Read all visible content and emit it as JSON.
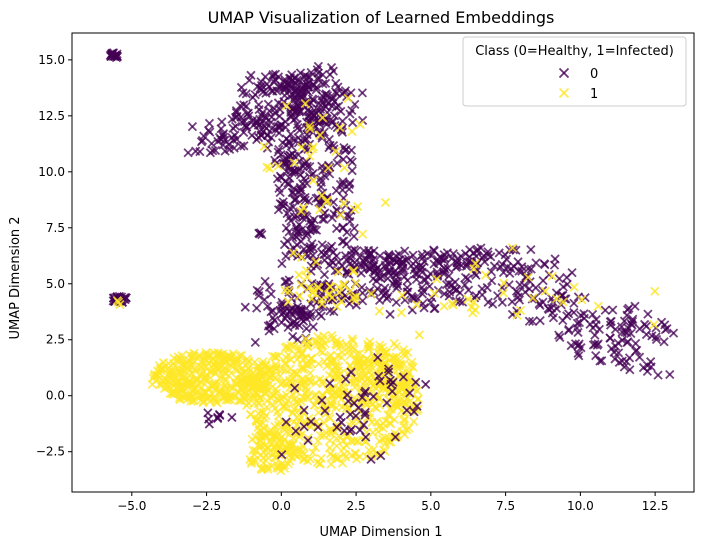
{
  "chart_data": {
    "type": "scatter",
    "title": "UMAP Visualization of Learned Embeddings",
    "xlabel": "UMAP Dimension 1",
    "ylabel": "UMAP Dimension 2",
    "xlim": [
      -7.0,
      13.8
    ],
    "ylim": [
      -4.3,
      16.2
    ],
    "x_ticks": [
      -5.0,
      -2.5,
      0.0,
      2.5,
      5.0,
      7.5,
      10.0,
      12.5
    ],
    "x_tick_labels": [
      "−5.0",
      "−2.5",
      "0.0",
      "2.5",
      "5.0",
      "7.5",
      "10.0",
      "12.5"
    ],
    "y_ticks": [
      -2.5,
      0.0,
      2.5,
      5.0,
      7.5,
      10.0,
      12.5,
      15.0
    ],
    "y_tick_labels": [
      "−2.5",
      "0.0",
      "2.5",
      "5.0",
      "7.5",
      "10.0",
      "12.5",
      "15.0"
    ],
    "grid": false,
    "marker": "x",
    "legend": {
      "title": "Class (0=Healthy, 1=Infected)",
      "position": "top-right",
      "entries": [
        "0",
        "1"
      ]
    },
    "series": [
      {
        "name": "0",
        "color": "#440154",
        "regions": [
          {
            "shape": "cluster",
            "center": [
              -5.6,
              15.2
            ],
            "radii": [
              0.15,
              0.12
            ],
            "n": 20
          },
          {
            "shape": "cluster",
            "center": [
              -5.4,
              4.3
            ],
            "radii": [
              0.25,
              0.15
            ],
            "n": 25
          },
          {
            "shape": "cluster",
            "center": [
              -0.7,
              7.2
            ],
            "radii": [
              0.08,
              0.08
            ],
            "n": 4
          },
          {
            "shape": "band",
            "points": [
              [
                -2.4,
                11.5
              ],
              [
                -1.0,
                12.0
              ],
              [
                0.0,
                12.5
              ],
              [
                1.0,
                13.0
              ],
              [
                2.0,
                12.8
              ]
            ],
            "width": 0.9,
            "n": 170
          },
          {
            "shape": "band",
            "points": [
              [
                -1.0,
                13.9
              ],
              [
                0.0,
                13.8
              ],
              [
                0.8,
                13.7
              ],
              [
                1.5,
                14.2
              ]
            ],
            "width": 0.55,
            "n": 90
          },
          {
            "shape": "band",
            "points": [
              [
                1.2,
                13.0
              ],
              [
                1.3,
                11.0
              ],
              [
                1.2,
                9.5
              ],
              [
                1.0,
                8.0
              ],
              [
                1.4,
                6.8
              ]
            ],
            "width": 1.2,
            "n": 190
          },
          {
            "shape": "band",
            "points": [
              [
                0.2,
                11.0
              ],
              [
                0.4,
                9.5
              ],
              [
                0.5,
                8.5
              ],
              [
                0.7,
                7.2
              ],
              [
                1.0,
                6.0
              ]
            ],
            "width": 0.55,
            "n": 80
          },
          {
            "shape": "band",
            "points": [
              [
                -0.3,
                3.2
              ],
              [
                0.5,
                4.5
              ],
              [
                1.5,
                5.4
              ],
              [
                3.0,
                5.3
              ],
              [
                4.5,
                4.8
              ],
              [
                6.0,
                5.3
              ],
              [
                7.5,
                5.4
              ],
              [
                9.0,
                4.2
              ],
              [
                10.5,
                3.2
              ],
              [
                12.0,
                2.2
              ],
              [
                12.5,
                1.9
              ]
            ],
            "width": 1.2,
            "n": 430
          },
          {
            "shape": "band",
            "points": [
              [
                2.5,
                5.9
              ],
              [
                4.0,
                5.8
              ],
              [
                6.0,
                6.0
              ],
              [
                7.5,
                6.1
              ]
            ],
            "width": 0.6,
            "n": 90
          },
          {
            "shape": "cluster",
            "center": [
              0.5,
              3.6
            ],
            "radii": [
              0.6,
              0.5
            ],
            "n": 25
          }
        ],
        "sprinkles": [
          {
            "center": [
              1.5,
              -0.8
            ],
            "radii": [
              2.2,
              1.8
            ],
            "n": 30
          },
          {
            "center": [
              3.6,
              0.3
            ],
            "radii": [
              1.2,
              1.4
            ],
            "n": 25
          },
          {
            "center": [
              -2.0,
              -1.0
            ],
            "radii": [
              0.4,
              0.2
            ],
            "n": 8
          }
        ]
      },
      {
        "name": "1",
        "color": "#fde725",
        "regions": [
          {
            "shape": "cluster",
            "center": [
              -2.3,
              0.8
            ],
            "radii": [
              2.1,
              1.15
            ],
            "n": 340
          },
          {
            "shape": "cluster",
            "center": [
              1.7,
              -0.2
            ],
            "radii": [
              2.9,
              2.9
            ],
            "n": 560
          },
          {
            "shape": "cluster",
            "center": [
              -0.3,
              -2.5
            ],
            "radii": [
              0.9,
              0.9
            ],
            "n": 80
          },
          {
            "shape": "cluster",
            "center": [
              3.5,
              1.3
            ],
            "radii": [
              1.0,
              1.1
            ],
            "n": 70
          }
        ],
        "sprinkles": [
          {
            "center": [
              1.2,
              10.0
            ],
            "radii": [
              1.6,
              2.8
            ],
            "n": 35
          },
          {
            "center": [
              6.0,
              4.6
            ],
            "radii": [
              4.5,
              1.4
            ],
            "n": 45
          },
          {
            "center": [
              1.3,
              4.8
            ],
            "radii": [
              1.3,
              0.9
            ],
            "n": 30
          },
          {
            "center": [
              -5.5,
              4.15
            ],
            "radii": [
              0.1,
              0.08
            ],
            "n": 3
          }
        ]
      }
    ]
  }
}
